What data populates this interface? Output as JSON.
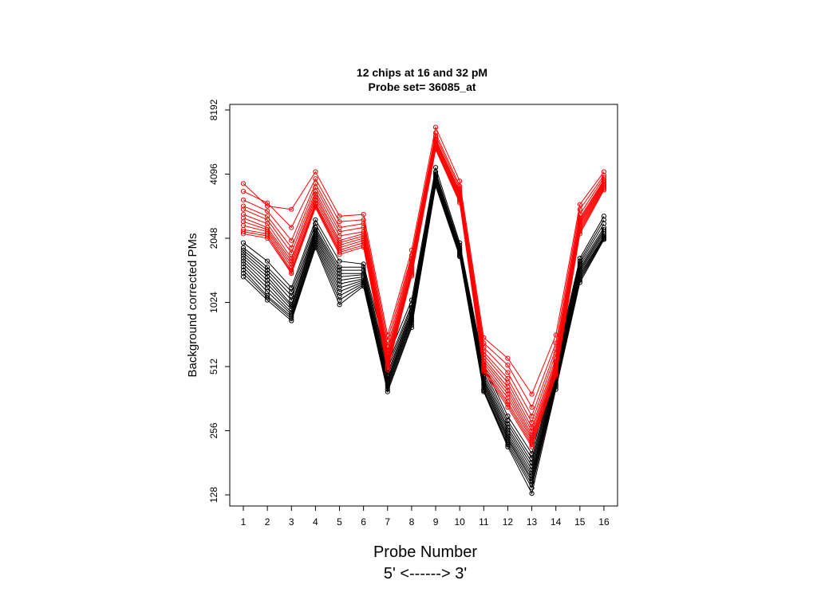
{
  "chart_data": {
    "type": "line",
    "title": "12 chips at 16 and 32 pM",
    "subtitle": "Probe set= 36085_at",
    "xlabel": "Probe Number",
    "xlabel2": "5' <------> 3'",
    "ylabel": "Background corrected PMs",
    "y_scale": "log2",
    "ylim": [
      128,
      8192
    ],
    "x": [
      1,
      2,
      3,
      4,
      5,
      6,
      7,
      8,
      9,
      10,
      11,
      12,
      13,
      14,
      15,
      16
    ],
    "x_tick_labels": [
      "1",
      "2",
      "3",
      "4",
      "5",
      "6",
      "7",
      "8",
      "9",
      "10",
      "11",
      "12",
      "13",
      "14",
      "15",
      "16"
    ],
    "y_ticks": [
      128,
      256,
      512,
      1024,
      2048,
      4096,
      8192
    ],
    "y_tick_labels": [
      "128",
      "256",
      "512",
      "1024",
      "2048",
      "4096",
      "8192"
    ],
    "grid": false,
    "marker": "open-circle",
    "series": [
      {
        "color": "#ff0000",
        "values": [
          3700,
          2900,
          2800,
          4200,
          2600,
          2650,
          720,
          1800,
          6800,
          3800,
          700,
          560,
          380,
          720,
          2950,
          4200
        ]
      },
      {
        "color": "#ff0000",
        "values": [
          3400,
          3000,
          2300,
          3900,
          2450,
          2500,
          680,
          1700,
          6400,
          3600,
          660,
          520,
          330,
          660,
          2800,
          4050
        ]
      },
      {
        "color": "#ff0000",
        "values": [
          3100,
          2750,
          2000,
          3700,
          2300,
          2400,
          640,
          1650,
          6200,
          3500,
          630,
          480,
          300,
          620,
          2650,
          3950
        ]
      },
      {
        "color": "#ff0000",
        "values": [
          2900,
          2600,
          1850,
          3550,
          2200,
          2300,
          610,
          1600,
          6000,
          3400,
          600,
          450,
          280,
          590,
          2550,
          3850
        ]
      },
      {
        "color": "#ff0000",
        "values": [
          2800,
          2500,
          1750,
          3400,
          2100,
          2200,
          590,
          1550,
          5900,
          3350,
          580,
          430,
          265,
          560,
          2500,
          3800
        ]
      },
      {
        "color": "#ff0000",
        "values": [
          2650,
          2400,
          1650,
          3300,
          2000,
          2150,
          570,
          1500,
          5800,
          3300,
          560,
          410,
          255,
          540,
          2450,
          3750
        ]
      },
      {
        "color": "#ff0000",
        "values": [
          2550,
          2300,
          1600,
          3200,
          1950,
          2100,
          555,
          1480,
          5700,
          3250,
          545,
          395,
          245,
          525,
          2400,
          3700
        ]
      },
      {
        "color": "#ff0000",
        "values": [
          2450,
          2250,
          1550,
          3100,
          1900,
          2050,
          540,
          1450,
          5600,
          3200,
          530,
          380,
          238,
          510,
          2350,
          3650
        ]
      },
      {
        "color": "#ff0000",
        "values": [
          2350,
          2200,
          1500,
          3000,
          1850,
          2000,
          525,
          1420,
          5500,
          3150,
          515,
          365,
          232,
          495,
          2300,
          3600
        ]
      },
      {
        "color": "#ff0000",
        "values": [
          2250,
          2150,
          1450,
          2950,
          1800,
          1950,
          515,
          1400,
          5450,
          3100,
          505,
          350,
          226,
          480,
          2250,
          3550
        ]
      },
      {
        "color": "#ff0000",
        "values": [
          2200,
          2100,
          1420,
          2900,
          1760,
          1900,
          505,
          1380,
          5400,
          3050,
          495,
          340,
          220,
          470,
          2200,
          3500
        ]
      },
      {
        "color": "#ff0000",
        "values": [
          2150,
          2050,
          1400,
          2850,
          1720,
          1860,
          495,
          1360,
          5350,
          3000,
          485,
          330,
          215,
          460,
          2150,
          3450
        ]
      },
      {
        "color": "#000000",
        "values": [
          1950,
          1600,
          1200,
          2500,
          1600,
          1550,
          560,
          1050,
          4400,
          1950,
          520,
          300,
          200,
          540,
          1650,
          2600
        ]
      },
      {
        "color": "#000000",
        "values": [
          1850,
          1500,
          1150,
          2400,
          1500,
          1500,
          520,
          1000,
          4200,
          1900,
          500,
          285,
          190,
          515,
          1600,
          2500
        ]
      },
      {
        "color": "#000000",
        "values": [
          1800,
          1450,
          1100,
          2300,
          1450,
          1450,
          500,
          970,
          4100,
          1850,
          480,
          275,
          182,
          500,
          1560,
          2400
        ]
      },
      {
        "color": "#000000",
        "values": [
          1750,
          1400,
          1050,
          2250,
          1400,
          1400,
          480,
          940,
          4000,
          1820,
          465,
          265,
          175,
          485,
          1520,
          2300
        ]
      },
      {
        "color": "#000000",
        "values": [
          1700,
          1350,
          1000,
          2200,
          1350,
          1380,
          465,
          920,
          3950,
          1800,
          450,
          258,
          168,
          470,
          1480,
          2250
        ]
      },
      {
        "color": "#000000",
        "values": [
          1650,
          1300,
          980,
          2150,
          1300,
          1350,
          450,
          900,
          3900,
          1780,
          440,
          250,
          162,
          460,
          1450,
          2200
        ]
      },
      {
        "color": "#000000",
        "values": [
          1600,
          1250,
          950,
          2100,
          1250,
          1320,
          440,
          880,
          3850,
          1760,
          430,
          243,
          157,
          450,
          1420,
          2150
        ]
      },
      {
        "color": "#000000",
        "values": [
          1550,
          1200,
          920,
          2050,
          1200,
          1300,
          430,
          860,
          3800,
          1740,
          420,
          237,
          152,
          440,
          1390,
          2100
        ]
      },
      {
        "color": "#000000",
        "values": [
          1500,
          1150,
          900,
          2000,
          1150,
          1280,
          420,
          840,
          3750,
          1720,
          410,
          232,
          148,
          430,
          1360,
          2080
        ]
      },
      {
        "color": "#000000",
        "values": [
          1450,
          1100,
          880,
          1950,
          1100,
          1260,
          410,
          820,
          3700,
          1700,
          400,
          226,
          143,
          420,
          1330,
          2060
        ]
      },
      {
        "color": "#000000",
        "values": [
          1400,
          1080,
          860,
          1900,
          1050,
          1240,
          400,
          800,
          3650,
          1690,
          395,
          220,
          138,
          410,
          1300,
          2040
        ]
      },
      {
        "color": "#000000",
        "values": [
          1350,
          1050,
          840,
          1850,
          1000,
          1220,
          390,
          780,
          3600,
          1680,
          390,
          215,
          130,
          400,
          1270,
          2020
        ]
      }
    ]
  }
}
